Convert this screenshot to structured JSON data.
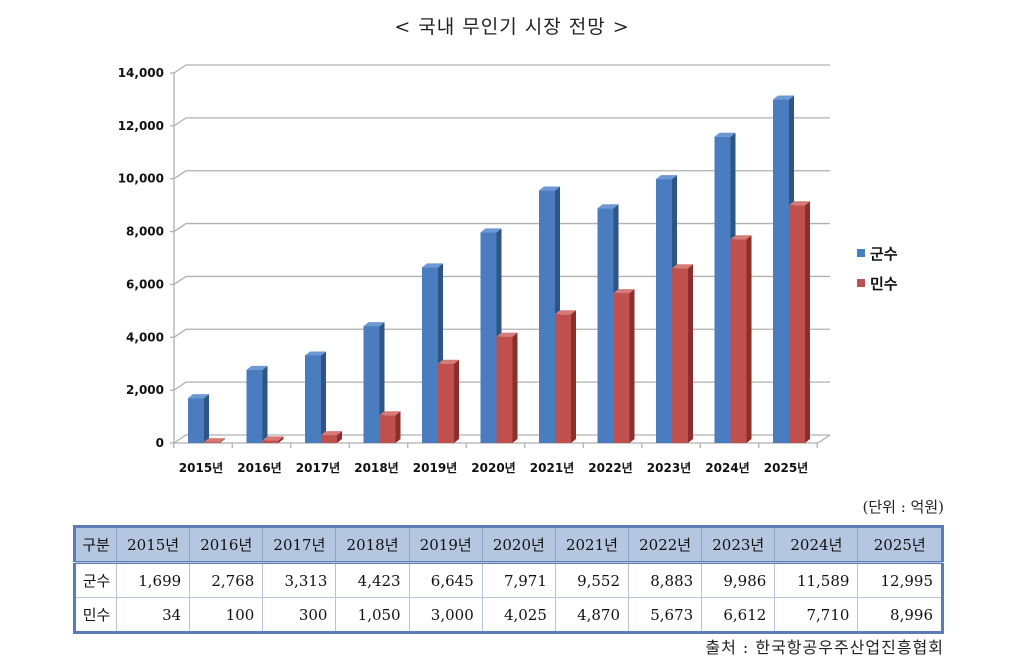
{
  "title": "< 국내 무인기 시장 전망 >",
  "unit_label": "(단위 : 억원)",
  "source_label": "출처 : 한국항공우주산업진흥협회",
  "colors": {
    "military": "#4a7cc0",
    "military_side": "#2f5584",
    "military_top": "#6e98d4",
    "civil": "#c0504d",
    "civil_side": "#8a2f2c",
    "civil_top": "#d67a77",
    "grid": "#b0b0b0"
  },
  "chart_data": {
    "type": "bar",
    "title": "< 국내 무인기 시장 전망 >",
    "xlabel": "",
    "ylabel": "",
    "ylim": [
      0,
      14000
    ],
    "yticks": [
      0,
      2000,
      4000,
      6000,
      8000,
      10000,
      12000,
      14000
    ],
    "ytick_labels": [
      "0",
      "2,000",
      "4,000",
      "6,000",
      "8,000",
      "10,000",
      "12,000",
      "14,000"
    ],
    "grid": true,
    "legend_position": "right",
    "categories": [
      "2015년",
      "2016년",
      "2017년",
      "2018년",
      "2019년",
      "2020년",
      "2021년",
      "2022년",
      "2023년",
      "2024년",
      "2025년"
    ],
    "series": [
      {
        "name": "군수",
        "values": [
          1699,
          2768,
          3313,
          4423,
          6645,
          7971,
          9552,
          8883,
          9986,
          11589,
          12995
        ]
      },
      {
        "name": "민수",
        "values": [
          34,
          100,
          300,
          1050,
          3000,
          4025,
          4870,
          5673,
          6612,
          7710,
          8996
        ]
      }
    ]
  },
  "table": {
    "header": [
      "구분",
      "2015년",
      "2016년",
      "2017년",
      "2018년",
      "2019년",
      "2020년",
      "2021년",
      "2022년",
      "2023년",
      "2024년",
      "2025년"
    ],
    "rows": [
      [
        "군수",
        "1,699",
        "2,768",
        "3,313",
        "4,423",
        "6,645",
        "7,971",
        "9,552",
        "8,883",
        "9,986",
        "11,589",
        "12,995"
      ],
      [
        "민수",
        "34",
        "100",
        "300",
        "1,050",
        "3,000",
        "4,025",
        "4,870",
        "5,673",
        "6,612",
        "7,710",
        "8,996"
      ]
    ]
  }
}
